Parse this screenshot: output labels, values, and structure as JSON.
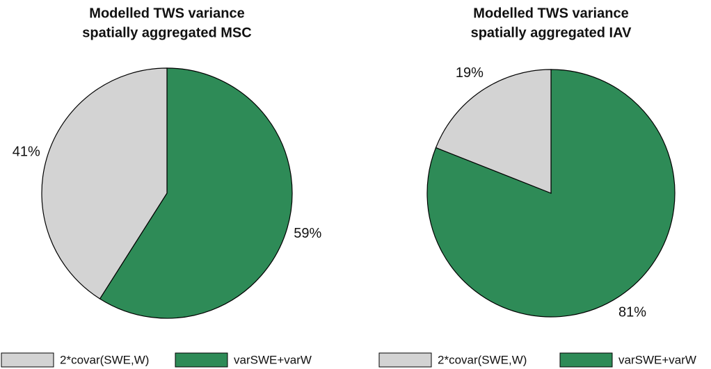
{
  "chart_data": [
    {
      "type": "pie",
      "title": "Modelled TWS variance",
      "subtitle": "spatially aggregated MSC",
      "categories": [
        "2*covar(SWE,W)",
        "varSWE+varW"
      ],
      "values": [
        41,
        59
      ],
      "value_labels": [
        "41%",
        "59%"
      ],
      "colors": [
        "#d3d3d3",
        "#2e8b57"
      ]
    },
    {
      "type": "pie",
      "title": "Modelled TWS variance",
      "subtitle": "spatially aggregated IAV",
      "categories": [
        "2*covar(SWE,W)",
        "varSWE+varW"
      ],
      "values": [
        19,
        81
      ],
      "value_labels": [
        "19%",
        "81%"
      ],
      "colors": [
        "#d3d3d3",
        "#2e8b57"
      ]
    }
  ]
}
